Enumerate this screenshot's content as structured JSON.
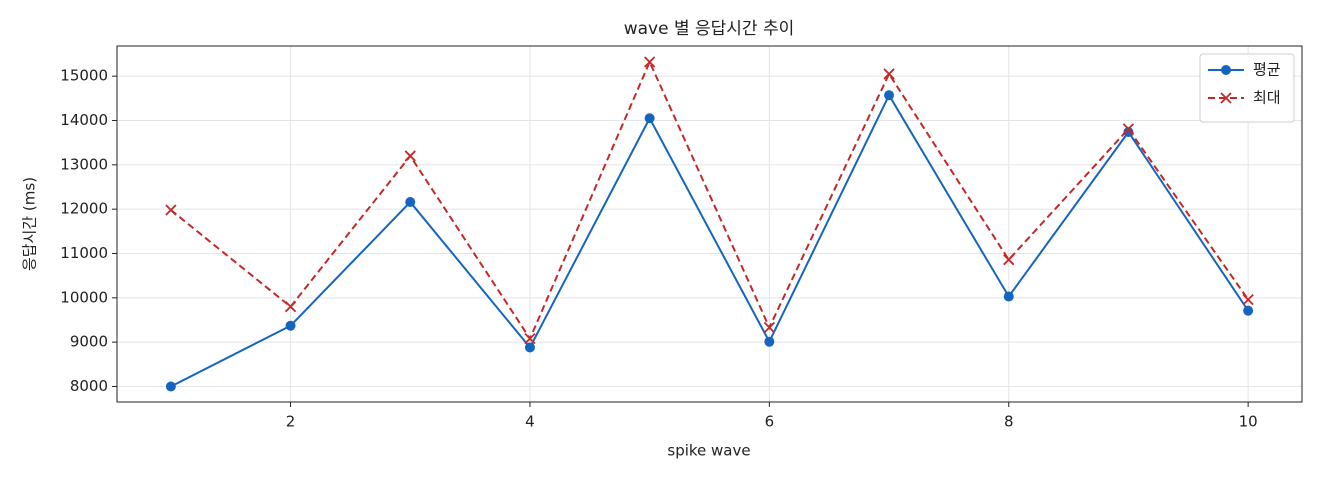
{
  "chart_data": {
    "type": "line",
    "title": "wave 별 응답시간 추이",
    "x_label": "spike wave",
    "y_label": "응답시간 (ms)",
    "x": [
      1,
      2,
      3,
      4,
      5,
      6,
      7,
      8,
      9,
      10
    ],
    "series": [
      {
        "name": "평균",
        "color": "#1565c0",
        "marker": "o",
        "dash": false,
        "values": [
          8000,
          9370,
          12160,
          8880,
          14050,
          9010,
          14570,
          10030,
          13740,
          9710
        ]
      },
      {
        "name": "최대",
        "color": "#c62828",
        "marker": "x",
        "dash": true,
        "values": [
          11980,
          9800,
          13200,
          9080,
          15320,
          9330,
          15050,
          10860,
          13810,
          9960
        ]
      }
    ],
    "xlim": [
      0.55,
      10.45
    ],
    "xticks": [
      2,
      4,
      6,
      8,
      10
    ],
    "ylim": [
      7650,
      15680
    ],
    "yticks": [
      8000,
      9000,
      10000,
      11000,
      12000,
      13000,
      14000,
      15000
    ],
    "grid": true,
    "legend": "upper right"
  }
}
